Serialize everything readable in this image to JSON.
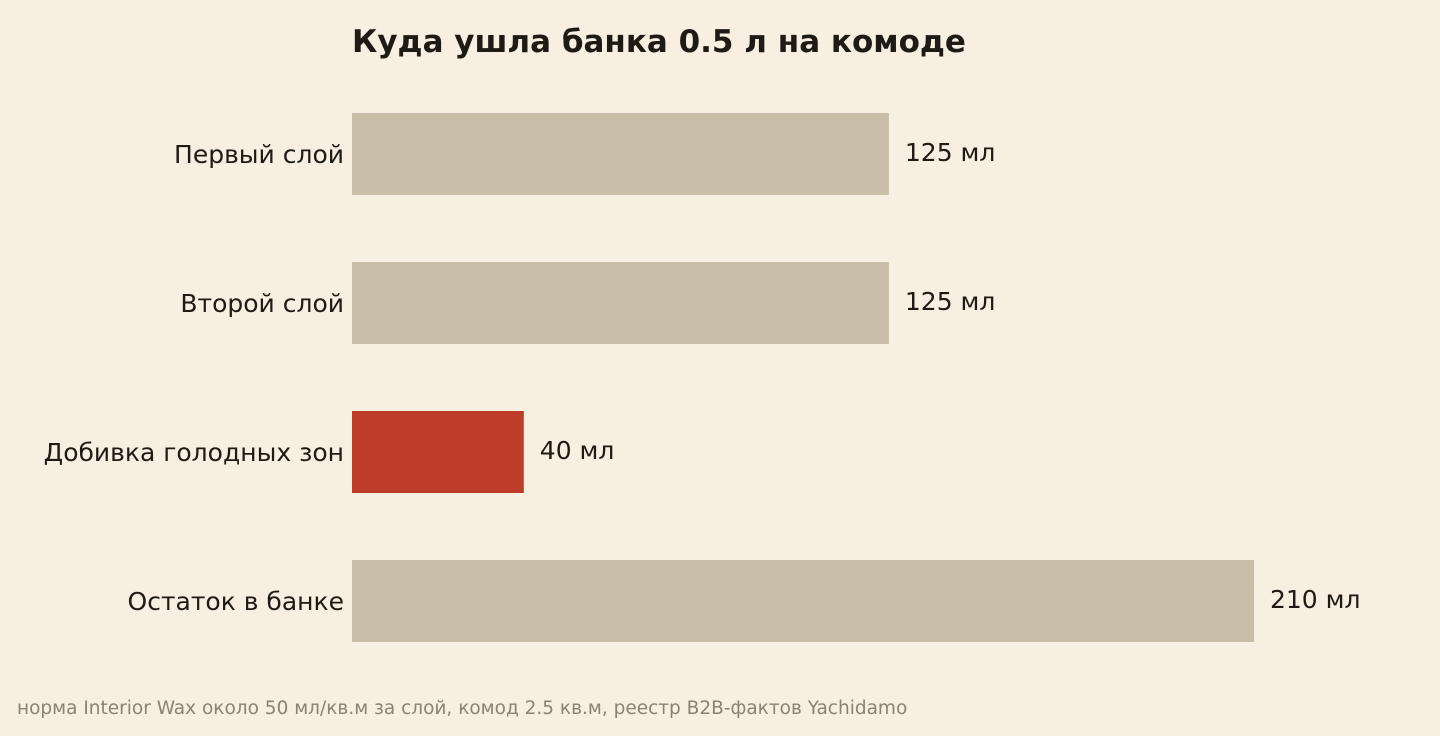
{
  "chart_data": {
    "type": "bar",
    "orientation": "horizontal",
    "title": "Куда ушла банка 0.5 л на комоде",
    "categories": [
      "Первый слой",
      "Второй слой",
      "Добивка голодных зон",
      "Остаток в банке"
    ],
    "values": [
      125,
      125,
      40,
      210
    ],
    "value_labels": [
      "125 мл",
      "125 мл",
      "40 мл",
      "210 мл"
    ],
    "highlight_index": 2,
    "xlim": [
      0,
      210
    ],
    "grid": false,
    "source_note": "норма Interior Wax около 50 мл/кв.м за слой, комод 2.5 кв.м, реестр B2B-фактов Yachidamo"
  },
  "colors": {
    "background": "#f6efe2",
    "bar": "#c9bfa8",
    "highlight": "#bd3d28",
    "text": "#1e1a14",
    "note": "#8a8275"
  }
}
